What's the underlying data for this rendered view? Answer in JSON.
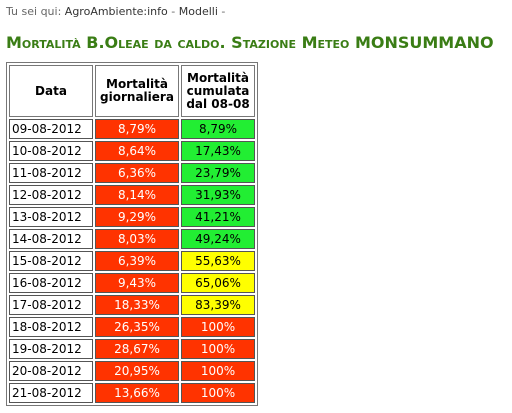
{
  "breadcrumb": {
    "prefix": "Tu sei qui:",
    "items": [
      "AgroAmbiente:info",
      "Modelli"
    ],
    "separator": "-"
  },
  "page_title": "Mortalità B.Oleae da caldo. Stazione Meteo MONSUMMANO",
  "table": {
    "headers": {
      "date": "Data",
      "daily_line1": "Mortalità",
      "daily_line2": "giornaliera",
      "cum_line1": "Mortalità",
      "cum_line2": "cumulata",
      "cum_line3": "dal 08-08"
    },
    "rows": [
      {
        "date": "09-08-2012",
        "daily": "8,79%",
        "cumulative": "8,79%",
        "cum_color": "green"
      },
      {
        "date": "10-08-2012",
        "daily": "8,64%",
        "cumulative": "17,43%",
        "cum_color": "green"
      },
      {
        "date": "11-08-2012",
        "daily": "6,36%",
        "cumulative": "23,79%",
        "cum_color": "green"
      },
      {
        "date": "12-08-2012",
        "daily": "8,14%",
        "cumulative": "31,93%",
        "cum_color": "green"
      },
      {
        "date": "13-08-2012",
        "daily": "9,29%",
        "cumulative": "41,21%",
        "cum_color": "green"
      },
      {
        "date": "14-08-2012",
        "daily": "8,03%",
        "cumulative": "49,24%",
        "cum_color": "green"
      },
      {
        "date": "15-08-2012",
        "daily": "6,39%",
        "cumulative": "55,63%",
        "cum_color": "yellow"
      },
      {
        "date": "16-08-2012",
        "daily": "9,43%",
        "cumulative": "65,06%",
        "cum_color": "yellow"
      },
      {
        "date": "17-08-2012",
        "daily": "18,33%",
        "cumulative": "83,39%",
        "cum_color": "yellow"
      },
      {
        "date": "18-08-2012",
        "daily": "26,35%",
        "cumulative": "100%",
        "cum_color": "red"
      },
      {
        "date": "19-08-2012",
        "daily": "28,67%",
        "cumulative": "100%",
        "cum_color": "red"
      },
      {
        "date": "20-08-2012",
        "daily": "20,95%",
        "cumulative": "100%",
        "cum_color": "red"
      },
      {
        "date": "21-08-2012",
        "daily": "13,66%",
        "cumulative": "100%",
        "cum_color": "red"
      }
    ]
  },
  "colors": {
    "title_green": "#3a7d15",
    "red_cell": "#ff3300",
    "green_cell": "#22ee33",
    "yellow_cell": "#ffff00"
  }
}
